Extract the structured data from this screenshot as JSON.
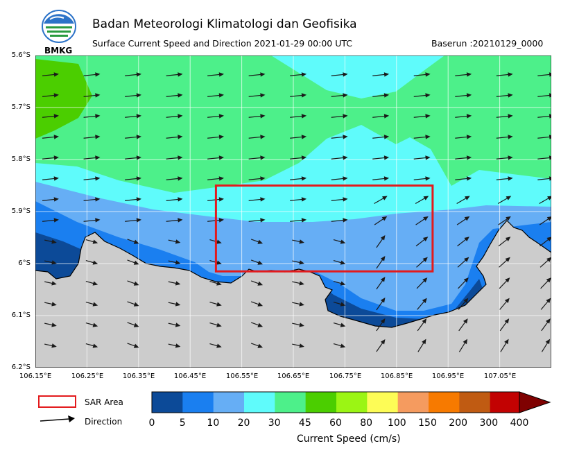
{
  "header": {
    "title": "Badan Meteorologi Klimatologi dan Geofisika",
    "subtitle": "Surface Current Speed and Direction 2021-01-29 00:00 UTC",
    "baserun": "Baserun :20210129_0000",
    "logo_text": "BMKG"
  },
  "map": {
    "lat_labels": [
      "5.6°S",
      "5.7°S",
      "5.8°S",
      "5.9°S",
      "6°S",
      "6.1°S",
      "6.2°S"
    ],
    "lon_labels": [
      "106.15°E",
      "106.25°E",
      "106.35°E",
      "106.45°E",
      "106.55°E",
      "106.65°E",
      "106.75°E",
      "106.85°E",
      "106.95°E",
      "107.05°E"
    ],
    "lat_range": [
      -6.2,
      -5.6
    ],
    "lon_range": [
      106.15,
      107.15
    ],
    "sar_area": {
      "lon_min": 106.5,
      "lon_max": 106.92,
      "lat_min": -6.015,
      "lat_max": -5.85
    },
    "land_color": "#cccccc",
    "arrow_color": "#1a1a1a"
  },
  "legend": {
    "sar_label": "SAR Area",
    "direction_label": "Direction",
    "sar_color": "#e31a1c"
  },
  "colorbar": {
    "ticks": [
      "0",
      "5",
      "10",
      "20",
      "30",
      "45",
      "60",
      "80",
      "100",
      "150",
      "200",
      "300",
      "400"
    ],
    "colors": [
      "#0c4a98",
      "#1a7ff0",
      "#66aef5",
      "#5ffbfb",
      "#4df08a",
      "#4bce00",
      "#9bf514",
      "#fdfc56",
      "#f59b5f",
      "#f77a00",
      "#c05b12",
      "#c20202"
    ],
    "extend_color": "#7f0101",
    "label": "Current Speed (cm/s)"
  }
}
